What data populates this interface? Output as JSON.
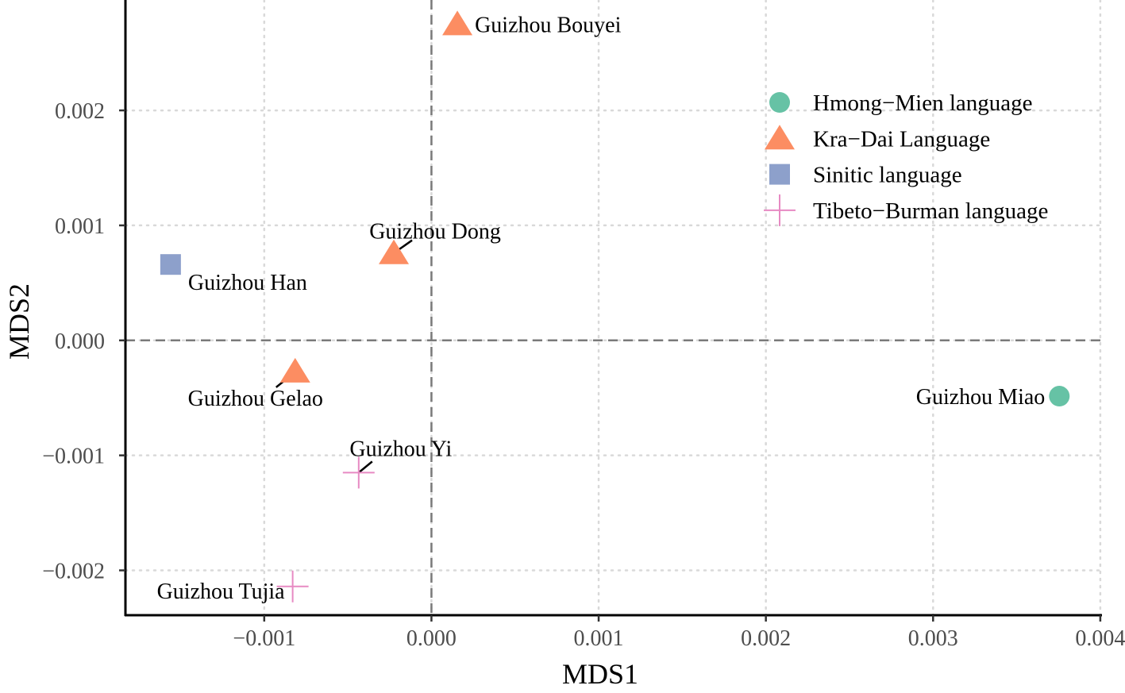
{
  "chart_data": {
    "type": "scatter",
    "xlabel": "MDS1",
    "ylabel": "MDS2",
    "xlim": [
      -0.00183,
      0.00401
    ],
    "ylim": [
      -0.00239,
      0.00296
    ],
    "x_ticks": [
      -0.001,
      0.0,
      0.001,
      0.002,
      0.003,
      0.004
    ],
    "x_tick_labels": [
      "−0.001",
      "0.000",
      "0.001",
      "0.002",
      "0.003",
      "0.004"
    ],
    "y_ticks": [
      -0.002,
      -0.001,
      0.0,
      0.001,
      0.002
    ],
    "y_tick_labels": [
      "−0.002",
      "−0.001",
      "0.000",
      "0.001",
      "0.002"
    ],
    "grid": true,
    "reference_lines": {
      "x": 0.0,
      "y": 0.0
    },
    "legend_position": "top-right",
    "groups": [
      {
        "name": "Hmong−Mien language",
        "shape": "circle",
        "color": "#66c2a5"
      },
      {
        "name": "Kra−Dai Language",
        "shape": "triangle",
        "color": "#fc8d62"
      },
      {
        "name": "Sinitic language",
        "shape": "square",
        "color": "#8da0cb"
      },
      {
        "name": "Tibeto−Burman language",
        "shape": "cross",
        "color": "#e78ac3"
      }
    ],
    "points": [
      {
        "label": "Guizhou Miao",
        "group": 0,
        "x": 0.003755,
        "y": -0.000485
      },
      {
        "label": "Guizhou Bouyei",
        "group": 1,
        "x": 0.000155,
        "y": 0.00275
      },
      {
        "label": "Guizhou Dong",
        "group": 1,
        "x": -0.000225,
        "y": 0.00076
      },
      {
        "label": "Guizhou Gelao",
        "group": 1,
        "x": -0.000815,
        "y": -0.00027
      },
      {
        "label": "Guizhou Han",
        "group": 2,
        "x": -0.00156,
        "y": 0.00066
      },
      {
        "label": "Guizhou Yi",
        "group": 3,
        "x": -0.000435,
        "y": -0.00115
      },
      {
        "label": "Guizhou Tujia",
        "group": 3,
        "x": -0.00083,
        "y": -0.00214
      }
    ]
  }
}
